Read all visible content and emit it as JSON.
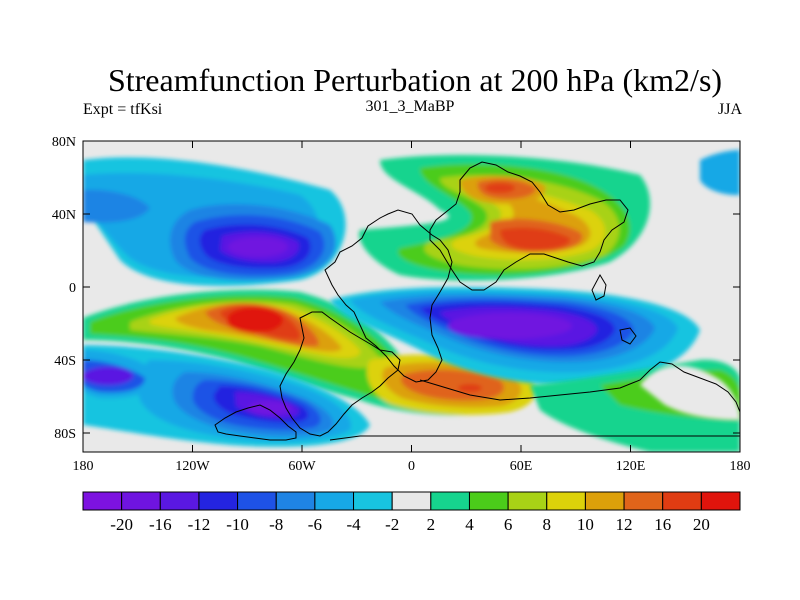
{
  "title": "Streamfunction Perturbation at 200 hPa (km2/s)",
  "subtitle_left": "Expt = tfKsi",
  "subtitle_center": "301_3_MaBP",
  "subtitle_right": "JJA",
  "colors": {
    "background": "#ffffff",
    "map_fill": "#e9e9e9",
    "coast": "#000000"
  },
  "x_ticks": [
    "180",
    "120W",
    "60W",
    "0",
    "60E",
    "120E",
    "180"
  ],
  "y_ticks": [
    "80N",
    "40N",
    "0",
    "40S",
    "80S"
  ],
  "colorbar": {
    "colors": [
      "#7d12e0",
      "#6f14e0",
      "#5a18e2",
      "#2424e0",
      "#1e52e6",
      "#1f84e4",
      "#17a8e6",
      "#18c4e0",
      "#e8e8e8",
      "#16d48e",
      "#4bcc1a",
      "#a8d216",
      "#dcd20a",
      "#dca00a",
      "#e0641a",
      "#e03c12",
      "#e0140c"
    ],
    "labels": [
      "-20",
      "-16",
      "-12",
      "-10",
      "-8",
      "-6",
      "-4",
      "-2",
      "2",
      "4",
      "6",
      "8",
      "10",
      "12",
      "16",
      "20"
    ]
  },
  "map_data": {
    "projection": "cylindrical-equidistant",
    "lon_range": [
      -180,
      180
    ],
    "lat_range": [
      -90,
      90
    ],
    "features": [
      {
        "name": "neg-ne-pacific",
        "lon": -70,
        "lat": 22,
        "rlon": 60,
        "rlat": 18,
        "level": "-20"
      },
      {
        "name": "neg-s-indian",
        "lon": 75,
        "lat": -22,
        "rlon": 55,
        "rlat": 16,
        "level": "-20"
      },
      {
        "name": "neg-s-pacific",
        "lon": -80,
        "lat": -65,
        "rlon": 45,
        "rlat": 14,
        "level": "-16"
      },
      {
        "name": "neg-far-se-pacific",
        "lon": -168,
        "lat": -48,
        "rlon": 20,
        "rlat": 12,
        "level": "-10"
      },
      {
        "name": "pos-s-atlantic",
        "lon": -70,
        "lat": -20,
        "rlon": 55,
        "rlat": 24,
        "level": "20"
      },
      {
        "name": "pos-asia",
        "lon": 80,
        "lat": 25,
        "rlon": 60,
        "rlat": 16,
        "level": "16"
      },
      {
        "name": "pos-siberia",
        "lon": 55,
        "lat": 55,
        "rlon": 25,
        "rlat": 12,
        "level": "12"
      },
      {
        "name": "pos-s-indian-ocean",
        "lon": 30,
        "lat": -58,
        "rlon": 50,
        "rlat": 12,
        "level": "12"
      }
    ]
  }
}
